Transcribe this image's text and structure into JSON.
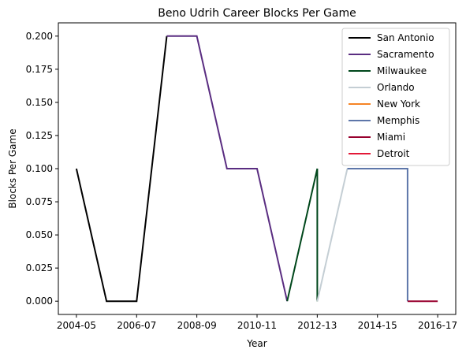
{
  "chart_data": {
    "type": "line",
    "title": "Beno Udrih Career Blocks Per Game",
    "xlabel": "Year",
    "ylabel": "Blocks Per Game",
    "x_tick_labels": [
      "2004-05",
      "2006-07",
      "2008-09",
      "2010-11",
      "2012-13",
      "2014-15",
      "2016-17"
    ],
    "x_tick_positions": [
      0,
      2,
      4,
      6,
      8,
      10,
      12
    ],
    "xlim": [
      -0.6,
      12.6
    ],
    "y_ticks": [
      0.0,
      0.025,
      0.05,
      0.075,
      0.1,
      0.125,
      0.15,
      0.175,
      0.2
    ],
    "y_tick_labels": [
      "0.000",
      "0.025",
      "0.050",
      "0.075",
      "0.100",
      "0.125",
      "0.150",
      "0.175",
      "0.200"
    ],
    "ylim": [
      -0.01,
      0.21
    ],
    "grid": false,
    "legend_position": "top-right",
    "series": [
      {
        "name": "San Antonio",
        "color": "#000000",
        "points": [
          [
            0,
            0.1
          ],
          [
            1,
            0.0
          ],
          [
            2,
            0.0
          ],
          [
            3,
            0.2
          ]
        ]
      },
      {
        "name": "Sacramento",
        "color": "#5a2d81",
        "points": [
          [
            3,
            0.2
          ],
          [
            4,
            0.2
          ],
          [
            5,
            0.1
          ],
          [
            6,
            0.1
          ],
          [
            7,
            0.0
          ]
        ]
      },
      {
        "name": "Milwaukee",
        "color": "#00471b",
        "points": [
          [
            7,
            0.0
          ],
          [
            8,
            0.1
          ],
          [
            8,
            0.0
          ]
        ]
      },
      {
        "name": "Orlando",
        "color": "#c4ced4",
        "points": [
          [
            8,
            0.0
          ],
          [
            9,
            0.1
          ]
        ]
      },
      {
        "name": "New York",
        "color": "#f58426",
        "points": []
      },
      {
        "name": "Memphis",
        "color": "#5d76a9",
        "points": [
          [
            9,
            0.1
          ],
          [
            11,
            0.1
          ],
          [
            11,
            0.0
          ]
        ]
      },
      {
        "name": "Miami",
        "color": "#98002e",
        "points": [
          [
            11,
            0.0
          ],
          [
            12,
            0.0
          ]
        ]
      },
      {
        "name": "Detroit",
        "color": "#e31837",
        "points": []
      }
    ]
  }
}
